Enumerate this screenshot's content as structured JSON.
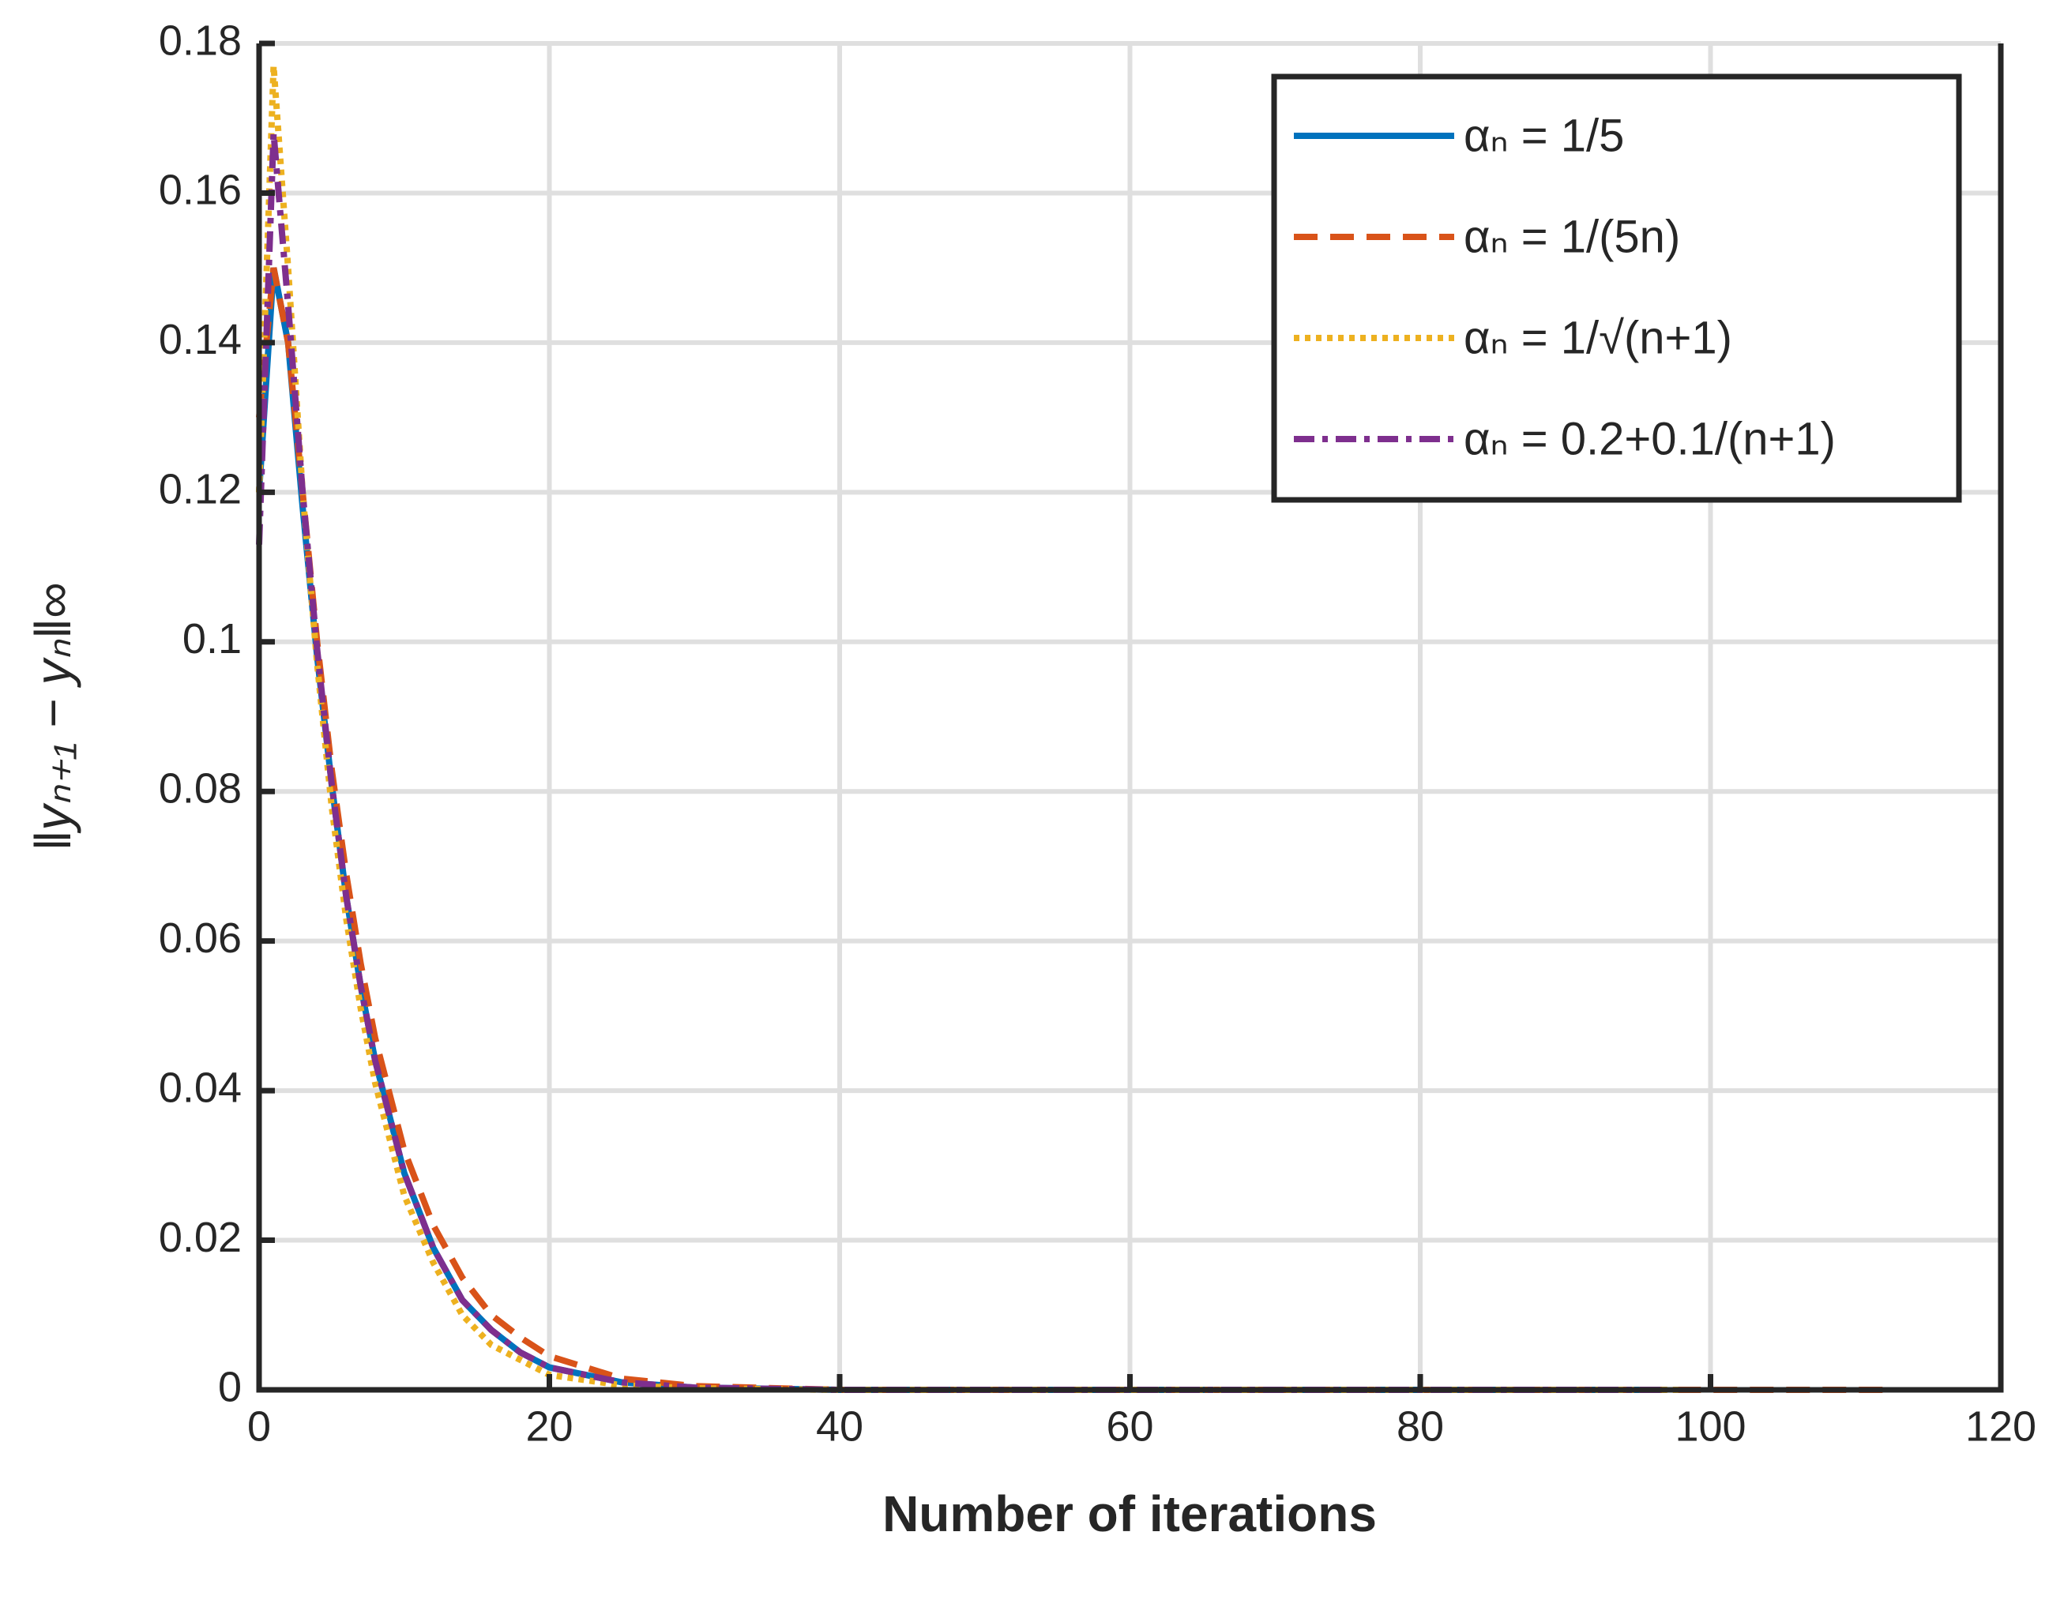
{
  "chart_data": {
    "type": "line",
    "xlabel": "Number of iterations",
    "ylabel": "‖yₙ₊₁ − yₙ‖∞",
    "xlim": [
      0,
      120
    ],
    "xticks": [
      0,
      20,
      40,
      60,
      80,
      100,
      120
    ],
    "ylim": [
      0,
      0.18
    ],
    "yticks": [
      0,
      0.02,
      0.04,
      0.06,
      0.08,
      0.1,
      0.12,
      0.14,
      0.16,
      0.18
    ],
    "grid": true,
    "legend": "northeast",
    "series": [
      {
        "name": "αₙ = 1/5",
        "color": "#0072bd",
        "style": "solid",
        "x": [
          0,
          1,
          2,
          3,
          4,
          5,
          6,
          7,
          8,
          10,
          12,
          14,
          16,
          18,
          20,
          25,
          30,
          40,
          60,
          80,
          97
        ],
        "values": [
          0.12,
          0.15,
          0.14,
          0.118,
          0.098,
          0.081,
          0.066,
          0.054,
          0.044,
          0.029,
          0.019,
          0.012,
          0.008,
          0.005,
          0.003,
          0.001,
          0.0003,
          0,
          0,
          0,
          0
        ]
      },
      {
        "name": "αₙ = 1/(5n)",
        "color": "#d95319",
        "style": "dashed",
        "x": [
          0,
          1,
          2,
          3,
          4,
          5,
          6,
          7,
          8,
          10,
          12,
          14,
          16,
          18,
          20,
          25,
          30,
          40,
          60,
          80,
          100,
          112
        ],
        "values": [
          0.13,
          0.15,
          0.14,
          0.12,
          0.1,
          0.083,
          0.069,
          0.057,
          0.047,
          0.032,
          0.022,
          0.015,
          0.01,
          0.007,
          0.0045,
          0.0015,
          0.0005,
          0,
          0,
          0,
          0,
          0
        ]
      },
      {
        "name": "αₙ = 1/√(n+1)",
        "color": "#edb120",
        "style": "dotted",
        "x": [
          0,
          1,
          2,
          3,
          4,
          5,
          6,
          7,
          8,
          10,
          12,
          14,
          16,
          18,
          20,
          25,
          30,
          40,
          60,
          80,
          98
        ],
        "values": [
          0.12,
          0.177,
          0.15,
          0.12,
          0.097,
          0.078,
          0.063,
          0.051,
          0.041,
          0.026,
          0.017,
          0.01,
          0.006,
          0.004,
          0.002,
          0.0006,
          0.0002,
          0,
          0,
          0,
          0
        ]
      },
      {
        "name": "αₙ = 0.2+0.1/(n+1)",
        "color": "#7e2f8e",
        "style": "dashdot",
        "x": [
          0,
          1,
          2,
          3,
          4,
          5,
          6,
          7,
          8,
          10,
          12,
          14,
          16,
          18,
          20,
          25,
          30,
          40,
          60,
          80,
          97
        ],
        "values": [
          0.113,
          0.168,
          0.145,
          0.12,
          0.099,
          0.081,
          0.066,
          0.054,
          0.044,
          0.029,
          0.019,
          0.012,
          0.008,
          0.005,
          0.003,
          0.001,
          0.0003,
          0,
          0,
          0,
          0
        ]
      }
    ]
  }
}
